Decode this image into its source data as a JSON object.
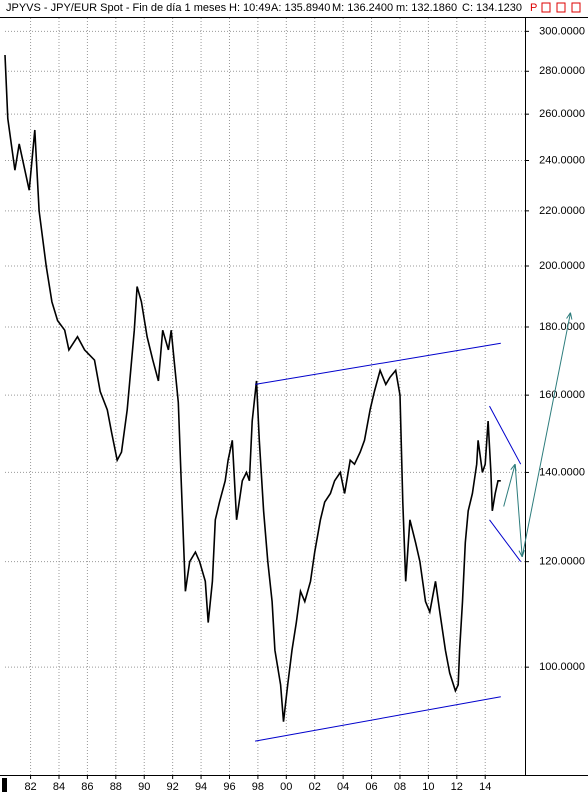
{
  "chart_data": {
    "type": "line",
    "title": "JPYVS - JPY/EUR Spot - Fin de día 1 meses",
    "stats": [
      "H: 10:49",
      "A: 135.8940",
      "M: 136.2400",
      "m: 132.1860",
      "C: 134.1230"
    ],
    "flag": "P",
    "log_scale": true,
    "grid": true,
    "xlim": [
      1980.2,
      2016.8
    ],
    "ylim": [
      83,
      307
    ],
    "xticks": [
      {
        "value": 1982,
        "label": "82"
      },
      {
        "value": 1984,
        "label": "84"
      },
      {
        "value": 1986,
        "label": "86"
      },
      {
        "value": 1988,
        "label": "88"
      },
      {
        "value": 1990,
        "label": "90"
      },
      {
        "value": 1992,
        "label": "92"
      },
      {
        "value": 1994,
        "label": "94"
      },
      {
        "value": 1996,
        "label": "96"
      },
      {
        "value": 1998,
        "label": "98"
      },
      {
        "value": 2000,
        "label": "00"
      },
      {
        "value": 2002,
        "label": "02"
      },
      {
        "value": 2004,
        "label": "04"
      },
      {
        "value": 2006,
        "label": "06"
      },
      {
        "value": 2008,
        "label": "08"
      },
      {
        "value": 2010,
        "label": "10"
      },
      {
        "value": 2012,
        "label": "12"
      },
      {
        "value": 2014,
        "label": "14"
      }
    ],
    "yticks": [
      {
        "value": 100,
        "label": "100.0000"
      },
      {
        "value": 120,
        "label": "120.0000"
      },
      {
        "value": 140,
        "label": "140.0000"
      },
      {
        "value": 160,
        "label": "160.0000"
      },
      {
        "value": 180,
        "label": "180.0000"
      },
      {
        "value": 200,
        "label": "200.0000"
      },
      {
        "value": 220,
        "label": "220.0000"
      },
      {
        "value": 240,
        "label": "240.0000"
      },
      {
        "value": 260,
        "label": "260.0000"
      },
      {
        "value": 280,
        "label": "280.0000"
      },
      {
        "value": 300,
        "label": "300.0000"
      }
    ],
    "series": [
      {
        "color": "#000000",
        "x": [
          1980.2,
          1980.4,
          1980.9,
          1981.2,
          1981.9,
          1982.3,
          1982.6,
          1983.1,
          1983.5,
          1983.9,
          1984.4,
          1984.7,
          1985.3,
          1985.8,
          1986.5,
          1986.9,
          1987.4,
          1987.7,
          1988.1,
          1988.4,
          1988.8,
          1989.3,
          1989.5,
          1989.8,
          1990.2,
          1990.6,
          1991.0,
          1991.3,
          1991.7,
          1991.9,
          1992.1,
          1992.4,
          1992.6,
          1992.9,
          1993.2,
          1993.6,
          1993.9,
          1994.3,
          1994.5,
          1994.8,
          1995.0,
          1995.3,
          1995.7,
          1995.9,
          1996.2,
          1996.5,
          1996.9,
          1997.2,
          1997.4,
          1997.6,
          1997.9,
          1998.1,
          1998.4,
          1998.7,
          1999.0,
          1999.2,
          1999.6,
          1999.8,
          2000.1,
          2000.4,
          2000.7,
          2001.0,
          2001.3,
          2001.7,
          2002.0,
          2002.4,
          2002.7,
          2003.1,
          2003.4,
          2003.8,
          2004.1,
          2004.5,
          2004.8,
          2005.2,
          2005.5,
          2005.9,
          2006.2,
          2006.6,
          2007.0,
          2007.3,
          2007.7,
          2008.0,
          2008.2,
          2008.4,
          2008.7,
          2009.1,
          2009.4,
          2009.8,
          2010.1,
          2010.5,
          2010.8,
          2011.2,
          2011.5,
          2011.9,
          2012.1,
          2012.2,
          2012.4,
          2012.6,
          2012.8,
          2013.1,
          2013.4,
          2013.5,
          2013.8,
          2014.0,
          2014.2,
          2014.4,
          2014.5,
          2014.7,
          2014.9,
          2015.1
        ],
        "values": [
          288,
          258,
          236,
          247,
          228,
          253,
          220,
          200,
          188,
          182,
          179,
          173,
          177,
          173,
          170,
          161,
          156,
          150,
          143,
          145,
          156,
          179,
          193,
          188,
          177,
          170,
          164,
          179,
          173,
          179,
          170,
          158,
          138,
          114,
          120,
          122,
          120,
          116,
          108,
          116,
          129,
          133,
          138,
          143,
          148,
          129,
          138,
          140,
          138,
          153,
          164,
          148,
          131,
          120,
          112,
          103,
          97,
          91,
          97,
          103,
          108,
          114,
          112,
          116,
          122,
          129,
          133,
          135,
          138,
          140,
          135,
          143,
          142,
          145,
          148,
          156,
          161,
          167,
          163,
          165,
          167,
          160,
          133,
          116,
          129,
          124,
          120,
          112,
          110,
          116,
          110,
          103,
          99,
          96,
          97,
          103,
          112,
          124,
          131,
          135,
          142,
          148,
          140,
          142,
          153,
          140,
          131,
          135,
          138,
          138
        ]
      }
    ],
    "trendlines": [
      {
        "color": "#0000cc",
        "x": [
          1997.8,
          2015.1
        ],
        "y": [
          163,
          175
        ]
      },
      {
        "color": "#0000cc",
        "x": [
          1997.8,
          2015.1
        ],
        "y": [
          88,
          95
        ]
      },
      {
        "color": "#0000cc",
        "x": [
          2014.3,
          2016.5
        ],
        "y": [
          157,
          142
        ]
      },
      {
        "color": "#0000cc",
        "x": [
          2014.3,
          2016.5
        ],
        "y": [
          129,
          120
        ]
      },
      {
        "color": "#2e7d7d",
        "x": [
          2015.3,
          2016.1,
          2016.6,
          2020.0
        ],
        "y": [
          132,
          142,
          121,
          184.5
        ]
      }
    ]
  }
}
